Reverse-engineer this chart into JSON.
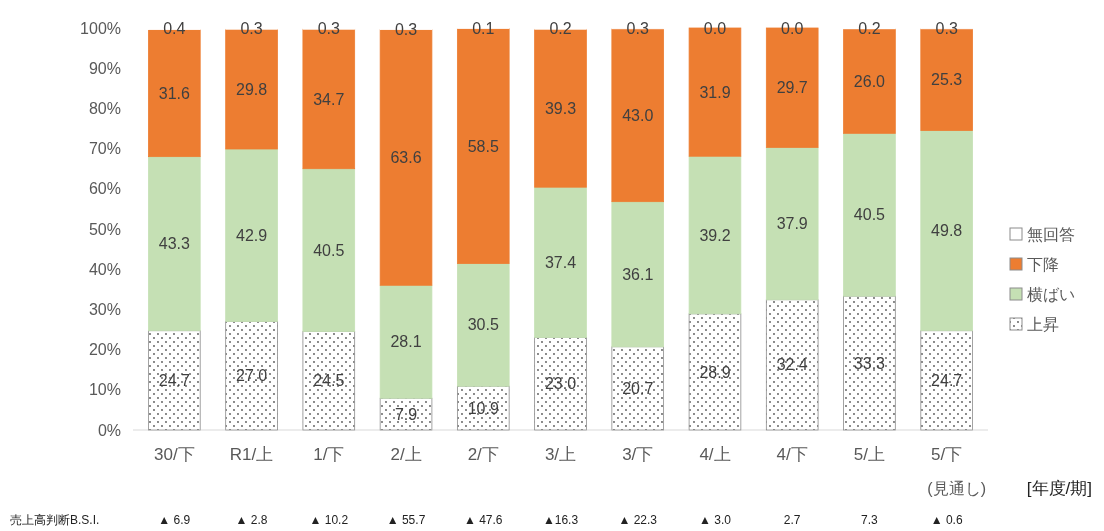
{
  "chart_data": {
    "type": "bar",
    "stacked": true,
    "data_labels": true,
    "legend": "right",
    "grid": false,
    "xlabel": "[年度/期]",
    "categories": [
      "30/下",
      "R1/上",
      "1/下",
      "2/上",
      "2/下",
      "3/上",
      "3/下",
      "4/上",
      "4/下",
      "5/上",
      "5/下"
    ],
    "ylim": [
      0,
      100
    ],
    "yticks": [
      {
        "value": 0,
        "label": "0%"
      },
      {
        "value": 10,
        "label": "10%"
      },
      {
        "value": 20,
        "label": "20%"
      },
      {
        "value": 30,
        "label": "30%"
      },
      {
        "value": 40,
        "label": "40%"
      },
      {
        "value": 50,
        "label": "50%"
      },
      {
        "value": 60,
        "label": "60%"
      },
      {
        "value": 70,
        "label": "70%"
      },
      {
        "value": 80,
        "label": "80%"
      },
      {
        "value": 90,
        "label": "90%"
      },
      {
        "value": 100,
        "label": "100%"
      }
    ],
    "series": [
      {
        "name": "上昇",
        "color": "#ffffff",
        "values": [
          24.7,
          27.0,
          24.5,
          7.9,
          10.9,
          23.0,
          20.7,
          28.9,
          32.4,
          33.3,
          24.7
        ],
        "value_labels": [
          "24.7",
          "27.0",
          "24.5",
          "7.9",
          "10.9",
          "23.0",
          "20.7",
          "28.9",
          "32.4",
          "33.3",
          "24.7"
        ]
      },
      {
        "name": "横ばい",
        "color": "#c5e0b4",
        "values": [
          43.3,
          42.9,
          40.5,
          28.1,
          30.5,
          37.4,
          36.1,
          39.2,
          37.9,
          40.5,
          49.8
        ],
        "value_labels": [
          "43.3",
          "42.9",
          "40.5",
          "28.1",
          "30.5",
          "37.4",
          "36.1",
          "39.2",
          "37.9",
          "40.5",
          "49.8"
        ]
      },
      {
        "name": "下降",
        "color": "#ed7d31",
        "values": [
          31.6,
          29.8,
          34.7,
          63.6,
          58.5,
          39.3,
          43.0,
          31.9,
          29.7,
          26.0,
          25.3
        ],
        "value_labels": [
          "31.6",
          "29.8",
          "34.7",
          "63.6",
          "58.5",
          "39.3",
          "43.0",
          "31.9",
          "29.7",
          "26.0",
          "25.3"
        ]
      },
      {
        "name": "無回答",
        "color": "#ffffff",
        "values": [
          0.4,
          0.3,
          0.3,
          0.3,
          0.1,
          0.2,
          0.3,
          0.0,
          0.0,
          0.2,
          0.3
        ],
        "value_labels": [
          "0.4",
          "0.3",
          "0.3",
          "0.3",
          "0.1",
          "0.2",
          "0.3",
          "0.0",
          "0.0",
          "0.2",
          "0.3"
        ]
      }
    ],
    "annotations": [
      "売上高判断B.S.I.",
      "▲ 6.9",
      "▲ 2.8",
      "▲ 10.2",
      "▲ 55.7",
      "▲ 47.6",
      "▲16.3",
      "▲ 22.3",
      "▲ 3.0",
      "2.7",
      "7.3",
      "▲ 0.6",
      "(見通し)"
    ]
  }
}
